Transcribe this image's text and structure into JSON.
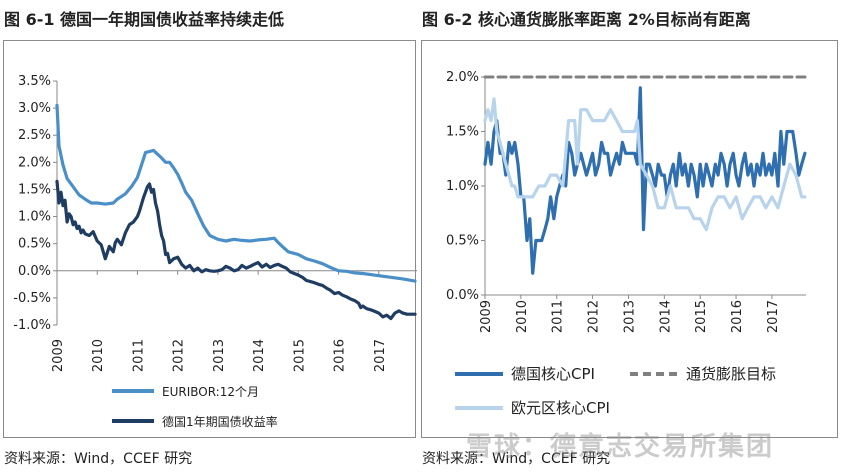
{
  "panels": [
    {
      "title": "图 6-1  德国一年期国债收益率持续走低",
      "source": "资料来源：Wind，CCEF 研究"
    },
    {
      "title": "图 6-2  核心通货膨胀率距离 2%目标尚有距离",
      "source": "资料来源：Wind，CCEF 研究"
    }
  ],
  "watermark": "雪球：德意志交易所集团",
  "chart_data": [
    {
      "type": "line",
      "title": "",
      "xlabel": "",
      "ylabel": "",
      "ylim": [
        -1.0,
        3.5
      ],
      "y_ticks": [
        "3.5%",
        "3.0%",
        "2.5%",
        "2.0%",
        "1.5%",
        "1.0%",
        "0.5%",
        "0.0%",
        "-0.5%",
        "-1.0%"
      ],
      "y_tick_values": [
        3.5,
        3.0,
        2.5,
        2.0,
        1.5,
        1.0,
        0.5,
        0.0,
        -0.5,
        -1.0
      ],
      "x_ticks": [
        "2009",
        "2010",
        "2011",
        "2012",
        "2013",
        "2014",
        "2015",
        "2016",
        "2017"
      ],
      "x_tick_values": [
        2009,
        2010,
        2011,
        2012,
        2013,
        2014,
        2015,
        2016,
        2017
      ],
      "xlim": [
        2009,
        2017.95
      ],
      "grid": false,
      "legend_position": "bottom",
      "series": [
        {
          "name": "EURIBOR:12个月",
          "color": "#4a8fc8",
          "x": [
            2009.0,
            2009.05,
            2009.15,
            2009.25,
            2009.4,
            2009.55,
            2009.7,
            2009.85,
            2010.0,
            2010.2,
            2010.4,
            2010.5,
            2010.7,
            2010.85,
            2011.0,
            2011.1,
            2011.2,
            2011.3,
            2011.4,
            2011.5,
            2011.6,
            2011.7,
            2011.8,
            2011.9,
            2012.0,
            2012.1,
            2012.2,
            2012.35,
            2012.5,
            2012.65,
            2012.8,
            2013.0,
            2013.2,
            2013.4,
            2013.6,
            2013.8,
            2014.0,
            2014.2,
            2014.4,
            2014.5,
            2014.6,
            2014.75,
            2014.9,
            2015.0,
            2015.2,
            2015.4,
            2015.6,
            2015.8,
            2016.0,
            2016.2,
            2016.4,
            2016.6,
            2016.8,
            2017.0,
            2017.3,
            2017.6,
            2017.9
          ],
          "values": [
            3.05,
            2.3,
            1.95,
            1.7,
            1.55,
            1.4,
            1.32,
            1.25,
            1.25,
            1.23,
            1.25,
            1.32,
            1.42,
            1.55,
            1.72,
            1.95,
            2.18,
            2.2,
            2.22,
            2.15,
            2.08,
            2.0,
            2.0,
            1.9,
            1.78,
            1.62,
            1.45,
            1.3,
            1.05,
            0.82,
            0.65,
            0.58,
            0.55,
            0.58,
            0.56,
            0.55,
            0.57,
            0.58,
            0.6,
            0.52,
            0.45,
            0.35,
            0.32,
            0.3,
            0.22,
            0.18,
            0.13,
            0.06,
            0.0,
            -0.01,
            -0.04,
            -0.05,
            -0.07,
            -0.09,
            -0.12,
            -0.15,
            -0.19
          ]
        },
        {
          "name": "德国1年期国债收益率",
          "color": "#1f3c62",
          "x": [
            2009.0,
            2009.05,
            2009.1,
            2009.15,
            2009.2,
            2009.25,
            2009.3,
            2009.35,
            2009.4,
            2009.45,
            2009.5,
            2009.55,
            2009.6,
            2009.65,
            2009.7,
            2009.8,
            2009.9,
            2010.0,
            2010.1,
            2010.2,
            2010.3,
            2010.4,
            2010.45,
            2010.5,
            2010.6,
            2010.7,
            2010.8,
            2010.9,
            2011.0,
            2011.05,
            2011.15,
            2011.25,
            2011.3,
            2011.35,
            2011.4,
            2011.45,
            2011.5,
            2011.55,
            2011.6,
            2011.65,
            2011.7,
            2011.75,
            2011.8,
            2011.9,
            2012.0,
            2012.1,
            2012.2,
            2012.3,
            2012.4,
            2012.5,
            2012.6,
            2012.7,
            2012.8,
            2012.9,
            2013.0,
            2013.1,
            2013.2,
            2013.3,
            2013.4,
            2013.5,
            2013.6,
            2013.7,
            2013.8,
            2013.9,
            2014.0,
            2014.1,
            2014.2,
            2014.3,
            2014.4,
            2014.5,
            2014.6,
            2014.7,
            2014.8,
            2014.9,
            2015.0,
            2015.1,
            2015.2,
            2015.3,
            2015.4,
            2015.5,
            2015.6,
            2015.7,
            2015.8,
            2015.9,
            2016.0,
            2016.1,
            2016.2,
            2016.3,
            2016.4,
            2016.5,
            2016.55,
            2016.6,
            2016.7,
            2016.8,
            2016.9,
            2017.0,
            2017.1,
            2017.2,
            2017.3,
            2017.4,
            2017.5,
            2017.6,
            2017.7,
            2017.8,
            2017.9
          ],
          "values": [
            1.65,
            1.25,
            1.45,
            1.2,
            1.3,
            0.9,
            1.05,
            1.0,
            0.85,
            0.9,
            0.78,
            0.82,
            0.7,
            0.75,
            0.68,
            0.65,
            0.72,
            0.55,
            0.48,
            0.22,
            0.45,
            0.35,
            0.52,
            0.58,
            0.48,
            0.7,
            0.85,
            0.9,
            1.0,
            1.1,
            1.35,
            1.55,
            1.6,
            1.45,
            1.5,
            1.25,
            1.1,
            0.85,
            0.65,
            0.55,
            0.3,
            0.32,
            0.15,
            0.22,
            0.25,
            0.12,
            0.05,
            0.1,
            0.0,
            0.05,
            -0.02,
            0.02,
            0.0,
            -0.01,
            0.0,
            0.02,
            0.08,
            0.05,
            0.0,
            0.02,
            0.1,
            0.05,
            0.08,
            0.12,
            0.15,
            0.07,
            0.12,
            0.06,
            0.1,
            0.12,
            0.08,
            0.05,
            -0.02,
            -0.05,
            -0.08,
            -0.12,
            -0.18,
            -0.2,
            -0.22,
            -0.25,
            -0.27,
            -0.32,
            -0.36,
            -0.42,
            -0.4,
            -0.45,
            -0.48,
            -0.52,
            -0.55,
            -0.6,
            -0.68,
            -0.65,
            -0.7,
            -0.72,
            -0.75,
            -0.78,
            -0.85,
            -0.82,
            -0.88,
            -0.78,
            -0.74,
            -0.78,
            -0.8,
            -0.8,
            -0.8
          ]
        }
      ]
    },
    {
      "type": "line",
      "title": "",
      "xlabel": "",
      "ylabel": "",
      "ylim": [
        0.0,
        2.0
      ],
      "y_ticks": [
        "2.0%",
        "1.5%",
        "1.0%",
        "0.5%",
        "0.0%"
      ],
      "y_tick_values": [
        2.0,
        1.5,
        1.0,
        0.5,
        0.0
      ],
      "x_ticks": [
        "2009",
        "2010",
        "2011",
        "2012",
        "2013",
        "2014",
        "2015",
        "2016",
        "2017"
      ],
      "x_tick_values": [
        2009,
        2010,
        2011,
        2012,
        2013,
        2014,
        2015,
        2016,
        2017
      ],
      "xlim": [
        2009,
        2017.95
      ],
      "grid": false,
      "legend_position": "bottom",
      "series": [
        {
          "name": "德国核心CPI",
          "color": "#2f6fb0",
          "x": [
            2009.0,
            2009.08,
            2009.17,
            2009.25,
            2009.33,
            2009.42,
            2009.5,
            2009.58,
            2009.67,
            2009.75,
            2009.83,
            2009.92,
            2010.0,
            2010.08,
            2010.17,
            2010.25,
            2010.33,
            2010.42,
            2010.5,
            2010.58,
            2010.67,
            2010.75,
            2010.83,
            2010.92,
            2011.0,
            2011.08,
            2011.17,
            2011.25,
            2011.33,
            2011.42,
            2011.5,
            2011.58,
            2011.67,
            2011.75,
            2011.83,
            2011.92,
            2012.0,
            2012.08,
            2012.17,
            2012.25,
            2012.33,
            2012.42,
            2012.5,
            2012.58,
            2012.67,
            2012.75,
            2012.83,
            2012.92,
            2013.0,
            2013.08,
            2013.17,
            2013.25,
            2013.33,
            2013.42,
            2013.5,
            2013.58,
            2013.67,
            2013.75,
            2013.83,
            2013.92,
            2014.0,
            2014.08,
            2014.17,
            2014.25,
            2014.33,
            2014.42,
            2014.5,
            2014.58,
            2014.67,
            2014.75,
            2014.83,
            2014.92,
            2015.0,
            2015.08,
            2015.17,
            2015.25,
            2015.33,
            2015.42,
            2015.5,
            2015.58,
            2015.67,
            2015.75,
            2015.83,
            2015.92,
            2016.0,
            2016.08,
            2016.17,
            2016.25,
            2016.33,
            2016.42,
            2016.5,
            2016.58,
            2016.67,
            2016.75,
            2016.83,
            2016.92,
            2017.0,
            2017.08,
            2017.17,
            2017.25,
            2017.33,
            2017.42,
            2017.5,
            2017.58,
            2017.67,
            2017.75,
            2017.83,
            2017.92
          ],
          "values": [
            1.2,
            1.4,
            1.2,
            1.5,
            1.6,
            1.3,
            1.3,
            1.1,
            1.4,
            1.3,
            1.4,
            1.2,
            0.9,
            0.9,
            0.5,
            0.7,
            0.2,
            0.5,
            0.5,
            0.5,
            0.6,
            0.7,
            0.9,
            0.7,
            0.9,
            1.0,
            1.1,
            1.0,
            1.4,
            1.3,
            1.1,
            1.2,
            1.3,
            1.2,
            1.1,
            1.2,
            1.3,
            1.1,
            1.2,
            1.4,
            1.3,
            1.3,
            1.1,
            1.2,
            1.3,
            1.2,
            1.4,
            1.3,
            1.3,
            1.3,
            1.3,
            1.2,
            1.9,
            0.6,
            1.2,
            1.2,
            1.1,
            1.0,
            1.2,
            1.1,
            1.1,
            0.9,
            1.1,
            1.2,
            1.0,
            1.3,
            1.1,
            1.2,
            1.0,
            1.2,
            1.1,
            0.9,
            1.2,
            1.0,
            1.2,
            1.1,
            1.0,
            1.2,
            1.1,
            1.3,
            1.2,
            1.0,
            1.2,
            1.3,
            1.1,
            1.0,
            1.2,
            1.3,
            1.1,
            1.2,
            1.0,
            1.2,
            1.1,
            1.3,
            1.1,
            1.2,
            1.1,
            1.3,
            1.0,
            1.5,
            1.2,
            1.5,
            1.5,
            1.5,
            1.3,
            1.1,
            1.2,
            1.3
          ]
        },
        {
          "name": "通货膨胀目标",
          "color": "#808080",
          "dashed": true,
          "x": [
            2009.0,
            2017.95
          ],
          "values": [
            2.0,
            2.0
          ]
        },
        {
          "name": "欧元区核心CPI",
          "color": "#b8d3ec",
          "x": [
            2009.0,
            2009.08,
            2009.17,
            2009.25,
            2009.33,
            2009.42,
            2009.5,
            2009.58,
            2009.67,
            2009.75,
            2009.83,
            2009.92,
            2010.0,
            2010.17,
            2010.33,
            2010.5,
            2010.67,
            2010.83,
            2011.0,
            2011.17,
            2011.33,
            2011.5,
            2011.58,
            2011.67,
            2011.83,
            2012.0,
            2012.17,
            2012.33,
            2012.5,
            2012.67,
            2012.83,
            2013.0,
            2013.17,
            2013.25,
            2013.33,
            2013.5,
            2013.67,
            2013.83,
            2014.0,
            2014.17,
            2014.33,
            2014.5,
            2014.67,
            2014.83,
            2015.0,
            2015.17,
            2015.33,
            2015.5,
            2015.67,
            2015.83,
            2016.0,
            2016.17,
            2016.33,
            2016.5,
            2016.67,
            2016.83,
            2017.0,
            2017.17,
            2017.33,
            2017.5,
            2017.67,
            2017.83,
            2017.92
          ],
          "values": [
            1.6,
            1.7,
            1.6,
            1.8,
            1.5,
            1.4,
            1.3,
            1.2,
            1.1,
            1.0,
            1.0,
            0.9,
            0.9,
            0.9,
            0.9,
            1.0,
            1.0,
            1.1,
            1.1,
            1.0,
            1.6,
            1.6,
            1.2,
            1.7,
            1.7,
            1.6,
            1.6,
            1.6,
            1.7,
            1.6,
            1.5,
            1.5,
            1.5,
            1.6,
            1.2,
            1.1,
            1.0,
            0.8,
            0.8,
            1.0,
            0.8,
            0.8,
            0.8,
            0.7,
            0.7,
            0.6,
            0.8,
            0.9,
            0.9,
            0.8,
            0.9,
            0.7,
            0.8,
            0.9,
            0.9,
            0.8,
            0.9,
            0.8,
            1.0,
            1.2,
            1.1,
            0.9,
            0.9
          ]
        }
      ]
    }
  ]
}
